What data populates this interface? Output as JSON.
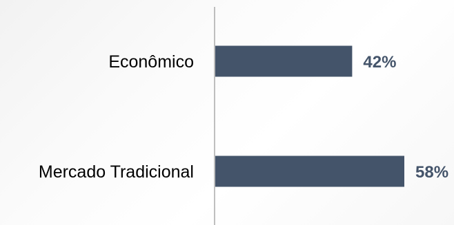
{
  "chart_data": {
    "type": "bar",
    "orientation": "horizontal",
    "categories": [
      "Econômico",
      "Mercado Tradicional"
    ],
    "values": [
      42,
      58
    ],
    "value_labels": [
      "42%",
      "58%"
    ],
    "title": "",
    "xlabel": "",
    "ylabel": "",
    "xlim": [
      0,
      58
    ],
    "grid": false,
    "legend": "none",
    "colors": {
      "bar": "#44546a",
      "value_label": "#44546a",
      "axis": "#808080",
      "category_label": "#000000"
    }
  }
}
